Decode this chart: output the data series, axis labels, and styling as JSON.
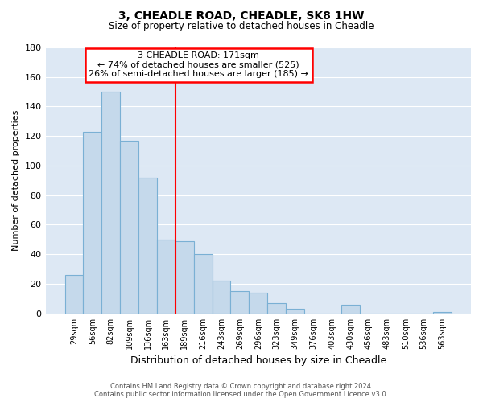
{
  "title": "3, CHEADLE ROAD, CHEADLE, SK8 1HW",
  "subtitle": "Size of property relative to detached houses in Cheadle",
  "xlabel": "Distribution of detached houses by size in Cheadle",
  "ylabel": "Number of detached properties",
  "bar_color": "#c5d9eb",
  "bar_edge_color": "#7ab0d4",
  "background_color": "#dde8f4",
  "bin_labels": [
    "29sqm",
    "56sqm",
    "82sqm",
    "109sqm",
    "136sqm",
    "163sqm",
    "189sqm",
    "216sqm",
    "243sqm",
    "269sqm",
    "296sqm",
    "323sqm",
    "349sqm",
    "376sqm",
    "403sqm",
    "430sqm",
    "456sqm",
    "483sqm",
    "510sqm",
    "536sqm",
    "563sqm"
  ],
  "bar_heights": [
    26,
    123,
    150,
    117,
    92,
    50,
    49,
    40,
    22,
    15,
    14,
    7,
    3,
    0,
    0,
    6,
    0,
    0,
    0,
    0,
    1
  ],
  "ylim": [
    0,
    180
  ],
  "yticks": [
    0,
    20,
    40,
    60,
    80,
    100,
    120,
    140,
    160,
    180
  ],
  "red_line_bin_index": 5,
  "annotation_title": "3 CHEADLE ROAD: 171sqm",
  "annotation_line1": "← 74% of detached houses are smaller (525)",
  "annotation_line2": "26% of semi-detached houses are larger (185) →",
  "footer_line1": "Contains HM Land Registry data © Crown copyright and database right 2024.",
  "footer_line2": "Contains public sector information licensed under the Open Government Licence v3.0."
}
